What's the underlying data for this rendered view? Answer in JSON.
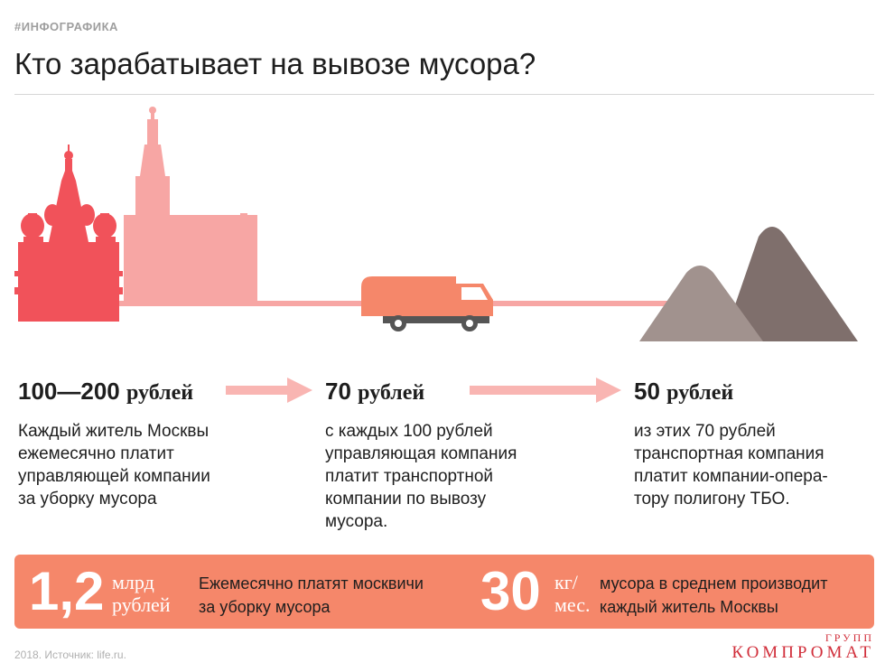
{
  "header": {
    "tag": "#ИНФОГРАФИКА",
    "title": "Кто зарабатывает на вывозе мусора?"
  },
  "steps": [
    {
      "amount": "100—200",
      "unit": "рублей",
      "desc": "Каждый житель Москвы\nежемесячно платит\nуправляющей компании\nза уборку мусора"
    },
    {
      "amount": "70",
      "unit": "рублей",
      "desc": "с каждых 100 рублей\nуправляющая компания\nплатит транспортной\nкомпании по вывозу\nмусора."
    },
    {
      "amount": "50",
      "unit": "рублей",
      "desc": "из этих 70 рублей\nтранспортная компания\nплатит компании-опера-\nтору полигону ТБО."
    }
  ],
  "banner": {
    "stat1": {
      "value": "1,2",
      "unit_top": "млрд",
      "unit_bottom": "рублей",
      "text": "Ежемесячно платят москвичи\nза уборку мусора"
    },
    "stat2": {
      "value": "30",
      "unit_top": "кг/",
      "unit_bottom": "мес.",
      "text": "мусора в среднем производит\nкаждый житель Москвы"
    }
  },
  "footer": {
    "source": "2018. Источник: life.ru.",
    "logo_top": "ГРУПП",
    "logo_name": "КОМПРОМАТ"
  },
  "colors": {
    "red": "#f1525a",
    "pink": "#f7a6a4",
    "pink_light": "#f9b5b2",
    "orange": "#f5876a",
    "mountain_dark": "#7f6f6c",
    "mountain_light": "#a1928e",
    "logo": "#d12e3a"
  },
  "icons": [
    "cathedral-icon",
    "university-building-icon",
    "garbage-truck-icon",
    "landfill-mountains-icon",
    "arrow-right-icon"
  ]
}
